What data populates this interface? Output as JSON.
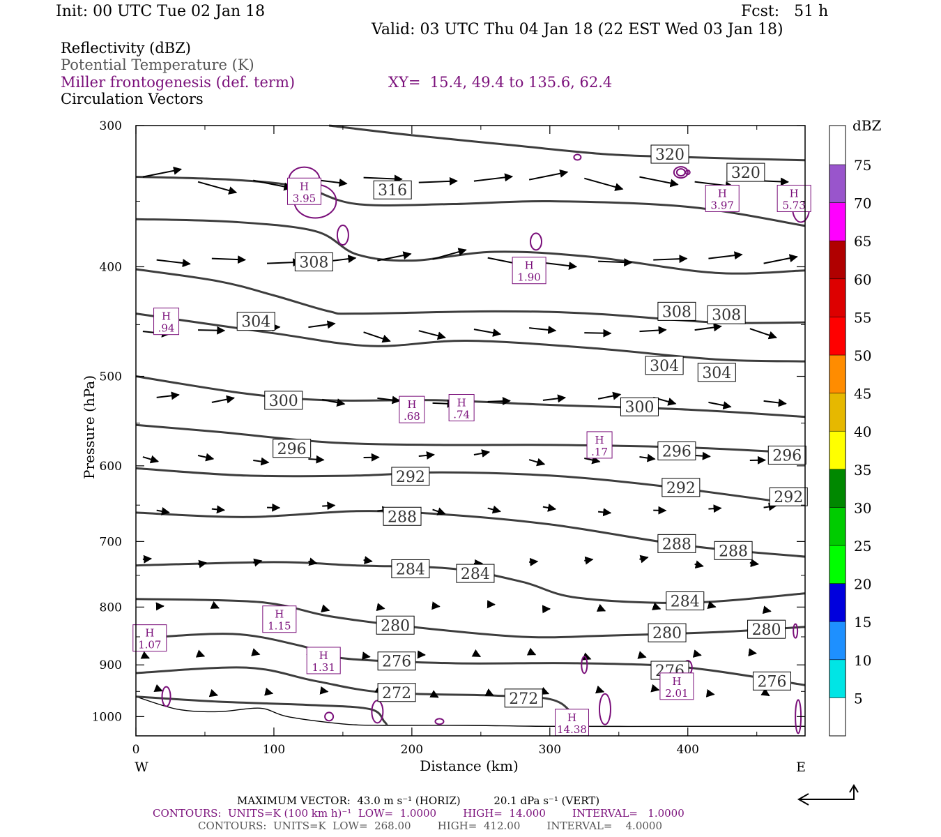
{
  "header": {
    "init": "Init: 00 UTC Tue 02 Jan 18",
    "fcst": "Fcst:   51 h",
    "valid": "Valid: 03 UTC Thu 04 Jan 18 (22 EST Wed 03 Jan 18)"
  },
  "legend": {
    "reflectivity": "Reflectivity (dBZ)",
    "theta": "Potential Temperature (K)",
    "miller": "Miller frontogenesis (def. term)",
    "xy": "XY=  15.4, 49.4 to 135.6, 62.4",
    "circulation": "Circulation Vectors"
  },
  "chart_data": {
    "type": "line",
    "xlabel": "Distance (km)",
    "ylabel": "Pressure (hPa)",
    "xlim": [
      0,
      485
    ],
    "ylim": [
      1040,
      300
    ],
    "yscale": "log",
    "x_ticks": [
      0,
      100,
      200,
      300,
      400
    ],
    "y_ticks": [
      300,
      400,
      500,
      600,
      700,
      800,
      900,
      1000
    ],
    "x_end_labels": {
      "left": "W",
      "right": "E"
    },
    "isentropes": [
      {
        "theta": 320,
        "points": [
          [
            140,
            300
          ],
          [
            200,
            306
          ],
          [
            270,
            312
          ],
          [
            340,
            318
          ],
          [
            400,
            320
          ],
          [
            485,
            322
          ]
        ]
      },
      {
        "theta": 316,
        "points": [
          [
            0,
            333
          ],
          [
            70,
            335
          ],
          [
            120,
            340
          ],
          [
            160,
            352
          ],
          [
            230,
            352
          ],
          [
            300,
            350
          ],
          [
            400,
            354
          ],
          [
            485,
            368
          ]
        ]
      },
      {
        "theta": 312,
        "points": [
          [
            0,
            363
          ],
          [
            70,
            365
          ],
          [
            130,
            372
          ],
          [
            160,
            390
          ],
          [
            200,
            395
          ],
          [
            260,
            388
          ],
          [
            330,
            392
          ],
          [
            420,
            405
          ],
          [
            485,
            403
          ]
        ]
      },
      {
        "theta": 308,
        "points": [
          [
            0,
            402
          ],
          [
            60,
            412
          ],
          [
            100,
            424
          ],
          [
            140,
            438
          ],
          [
            160,
            440
          ],
          [
            260,
            438
          ],
          [
            330,
            440
          ],
          [
            420,
            448
          ],
          [
            485,
            448
          ]
        ]
      },
      {
        "theta": 304,
        "points": [
          [
            0,
            440
          ],
          [
            100,
            458
          ],
          [
            170,
            470
          ],
          [
            240,
            465
          ],
          [
            330,
            472
          ],
          [
            420,
            483
          ],
          [
            485,
            485
          ]
        ]
      },
      {
        "theta": 300,
        "points": [
          [
            0,
            500
          ],
          [
            80,
            518
          ],
          [
            140,
            525
          ],
          [
            220,
            525
          ],
          [
            300,
            530
          ],
          [
            400,
            535
          ],
          [
            485,
            543
          ]
        ]
      },
      {
        "theta": 296,
        "points": [
          [
            0,
            552
          ],
          [
            60,
            560
          ],
          [
            140,
            572
          ],
          [
            220,
            575
          ],
          [
            300,
            575
          ],
          [
            400,
            578
          ],
          [
            485,
            585
          ]
        ]
      },
      {
        "theta": 292,
        "points": [
          [
            0,
            603
          ],
          [
            80,
            612
          ],
          [
            160,
            612
          ],
          [
            220,
            608
          ],
          [
            300,
            612
          ],
          [
            380,
            625
          ],
          [
            485,
            650
          ]
        ]
      },
      {
        "theta": 288,
        "points": [
          [
            0,
            660
          ],
          [
            80,
            666
          ],
          [
            160,
            658
          ],
          [
            220,
            662
          ],
          [
            300,
            676
          ],
          [
            400,
            706
          ],
          [
            485,
            722
          ]
        ]
      },
      {
        "theta": 284,
        "points": [
          [
            0,
            735
          ],
          [
            100,
            730
          ],
          [
            160,
            735
          ],
          [
            230,
            740
          ],
          [
            280,
            760
          ],
          [
            320,
            785
          ],
          [
            400,
            793
          ],
          [
            485,
            778
          ]
        ]
      },
      {
        "theta": 280,
        "points": [
          [
            0,
            787
          ],
          [
            90,
            792
          ],
          [
            140,
            815
          ],
          [
            200,
            833
          ],
          [
            280,
            850
          ],
          [
            340,
            848
          ],
          [
            420,
            842
          ],
          [
            485,
            833
          ]
        ]
      },
      {
        "theta": 276,
        "points": [
          [
            0,
            853
          ],
          [
            70,
            845
          ],
          [
            120,
            866
          ],
          [
            150,
            888
          ],
          [
            230,
            897
          ],
          [
            320,
            897
          ],
          [
            400,
            905
          ],
          [
            485,
            938
          ]
        ]
      },
      {
        "theta": 272,
        "points": [
          [
            0,
            915
          ],
          [
            80,
            905
          ],
          [
            130,
            930
          ],
          [
            180,
            952
          ],
          [
            260,
            958
          ],
          [
            300,
            965
          ],
          [
            315,
            990
          ],
          [
            320,
            1018
          ]
        ]
      },
      {
        "theta": 268,
        "points": [
          [
            0,
            960
          ],
          [
            60,
            970
          ],
          [
            130,
            977
          ],
          [
            170,
            985
          ],
          [
            180,
            1010
          ],
          [
            182,
            1018
          ]
        ]
      }
    ],
    "terrain_surface_hpa": [
      [
        0,
        960
      ],
      [
        30,
        985
      ],
      [
        60,
        990
      ],
      [
        90,
        983
      ],
      [
        110,
        1000
      ],
      [
        150,
        1015
      ],
      [
        180,
        1018
      ],
      [
        240,
        1018
      ],
      [
        300,
        1020
      ],
      [
        400,
        1020
      ],
      [
        485,
        1020
      ]
    ],
    "frontogenesis_maxima": [
      {
        "label": "H",
        "value": "3.95",
        "x": 122,
        "p": 343
      },
      {
        "label": "H",
        "value": "3.97",
        "x": 425,
        "p": 348
      },
      {
        "label": "H",
        "value": "5.73",
        "x": 477,
        "p": 348
      },
      {
        "label": "H",
        "value": ".94",
        "x": 22,
        "p": 447
      },
      {
        "label": "H",
        "value": "1.90",
        "x": 285,
        "p": 403
      },
      {
        "label": "H",
        "value": ".68",
        "x": 200,
        "p": 535
      },
      {
        "label": "H",
        "value": ".74",
        "x": 236,
        "p": 533
      },
      {
        "label": "H",
        "value": ".17",
        "x": 336,
        "p": 575
      },
      {
        "label": "H",
        "value": "1.15",
        "x": 104,
        "p": 820
      },
      {
        "label": "H",
        "value": "1.07",
        "x": 10,
        "p": 852
      },
      {
        "label": "H",
        "value": "1.31",
        "x": 136,
        "p": 892
      },
      {
        "label": "H",
        "value": "2.01",
        "x": 392,
        "p": 940
      },
      {
        "label": "H",
        "value": "14.38",
        "x": 316,
        "p": 1012
      }
    ],
    "isentrope_labels": [
      {
        "text": "320",
        "x": 387,
        "p": 318
      },
      {
        "text": "320",
        "x": 442,
        "p": 330
      },
      {
        "text": "316",
        "x": 186,
        "p": 342
      },
      {
        "text": "308",
        "x": 129,
        "p": 396
      },
      {
        "text": "304",
        "x": 87,
        "p": 447
      },
      {
        "text": "308",
        "x": 392,
        "p": 438
      },
      {
        "text": "308",
        "x": 428,
        "p": 441
      },
      {
        "text": "304",
        "x": 383,
        "p": 489
      },
      {
        "text": "304",
        "x": 421,
        "p": 496
      },
      {
        "text": "300",
        "x": 107,
        "p": 525
      },
      {
        "text": "300",
        "x": 365,
        "p": 532
      },
      {
        "text": "296",
        "x": 113,
        "p": 579
      },
      {
        "text": "296",
        "x": 392,
        "p": 582
      },
      {
        "text": "296",
        "x": 472,
        "p": 587
      },
      {
        "text": "292",
        "x": 199,
        "p": 613
      },
      {
        "text": "292",
        "x": 395,
        "p": 627
      },
      {
        "text": "292",
        "x": 473,
        "p": 639
      },
      {
        "text": "288",
        "x": 193,
        "p": 665
      },
      {
        "text": "288",
        "x": 392,
        "p": 703
      },
      {
        "text": "288",
        "x": 433,
        "p": 713
      },
      {
        "text": "284",
        "x": 199,
        "p": 740
      },
      {
        "text": "284",
        "x": 246,
        "p": 747
      },
      {
        "text": "284",
        "x": 398,
        "p": 790
      },
      {
        "text": "280",
        "x": 188,
        "p": 830
      },
      {
        "text": "280",
        "x": 385,
        "p": 843
      },
      {
        "text": "280",
        "x": 457,
        "p": 837
      },
      {
        "text": "276",
        "x": 189,
        "p": 893
      },
      {
        "text": "276",
        "x": 387,
        "p": 910
      },
      {
        "text": "276",
        "x": 461,
        "p": 930
      },
      {
        "text": "272",
        "x": 189,
        "p": 952
      },
      {
        "text": "272",
        "x": 281,
        "p": 963
      }
    ],
    "reflectivity_colorbar": {
      "unit": "dBZ",
      "levels": [
        "5",
        "10",
        "15",
        "20",
        "25",
        "30",
        "35",
        "40",
        "45",
        "50",
        "55",
        "60",
        "65",
        "70",
        "75"
      ],
      "colors": [
        "#ffffff",
        "#00e5e5",
        "#1e90ff",
        "#0000dd",
        "#00ff00",
        "#00cc00",
        "#008800",
        "#ffff00",
        "#e6b800",
        "#ff8c00",
        "#ff0000",
        "#dd0000",
        "#b00000",
        "#ff00ff",
        "#9955cc"
      ]
    }
  },
  "footer": {
    "max_vector": "MAXIMUM VECTOR:  43.0 m s⁻¹ (HORIZ)          20.1 dPa s⁻¹ (VERT)",
    "contours_miller": "CONTOURS:  UNITS=K (100 km h)⁻¹  LOW=  1.0000        HIGH=  14.000        INTERVAL=   1.0000",
    "contours_theta": "CONTOURS:  UNITS=K  LOW=  268.00        HIGH=  412.00        INTERVAL=    4.0000"
  }
}
